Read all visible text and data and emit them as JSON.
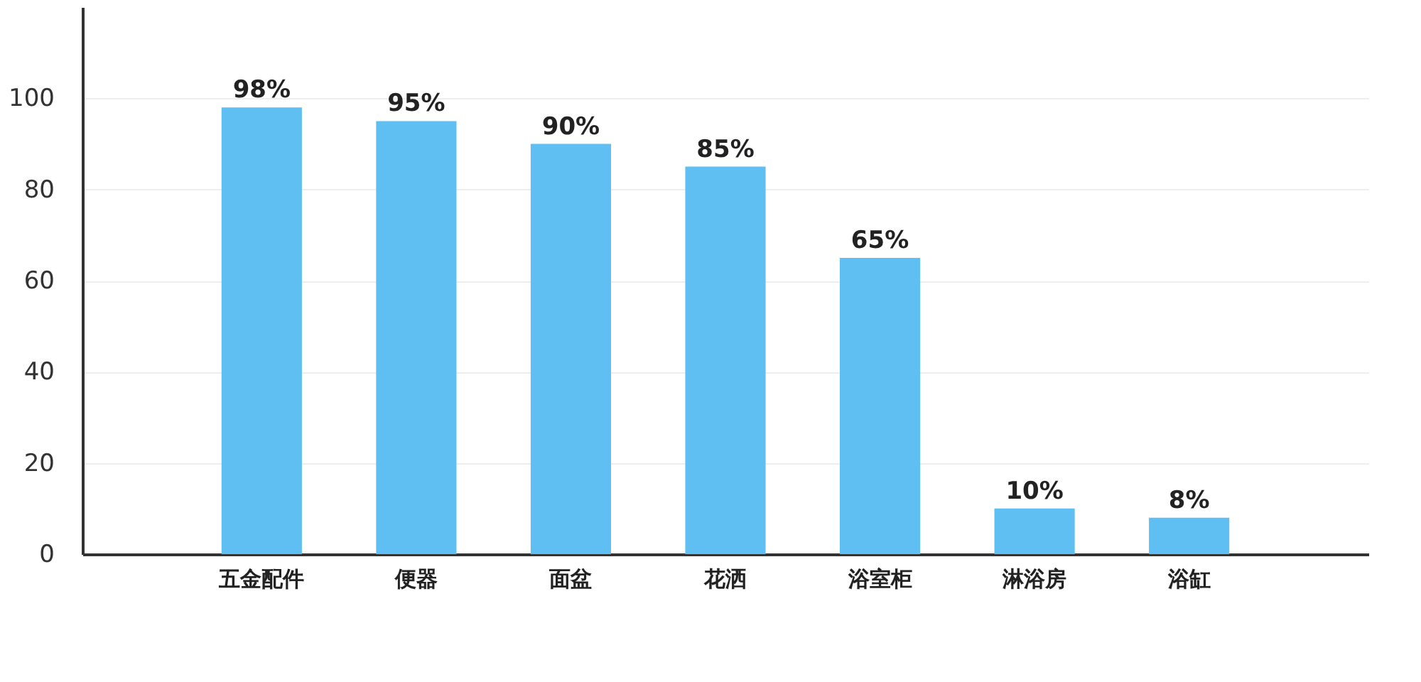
{
  "chart_data": {
    "type": "bar",
    "categories": [
      "五金配件",
      "便器",
      "面盆",
      "花洒",
      "浴室柜",
      "淋浴房",
      "浴缸"
    ],
    "values": [
      98,
      95,
      90,
      85,
      65,
      10,
      8
    ],
    "color": "#5fbff2",
    "value_labels": [
      "98%",
      "95%",
      "90%",
      "85%",
      "65%",
      "10%",
      "8%"
    ],
    "ylim": [
      0,
      120
    ],
    "yticks": [
      0,
      20,
      40,
      60,
      80,
      100
    ],
    "grid": "y"
  }
}
